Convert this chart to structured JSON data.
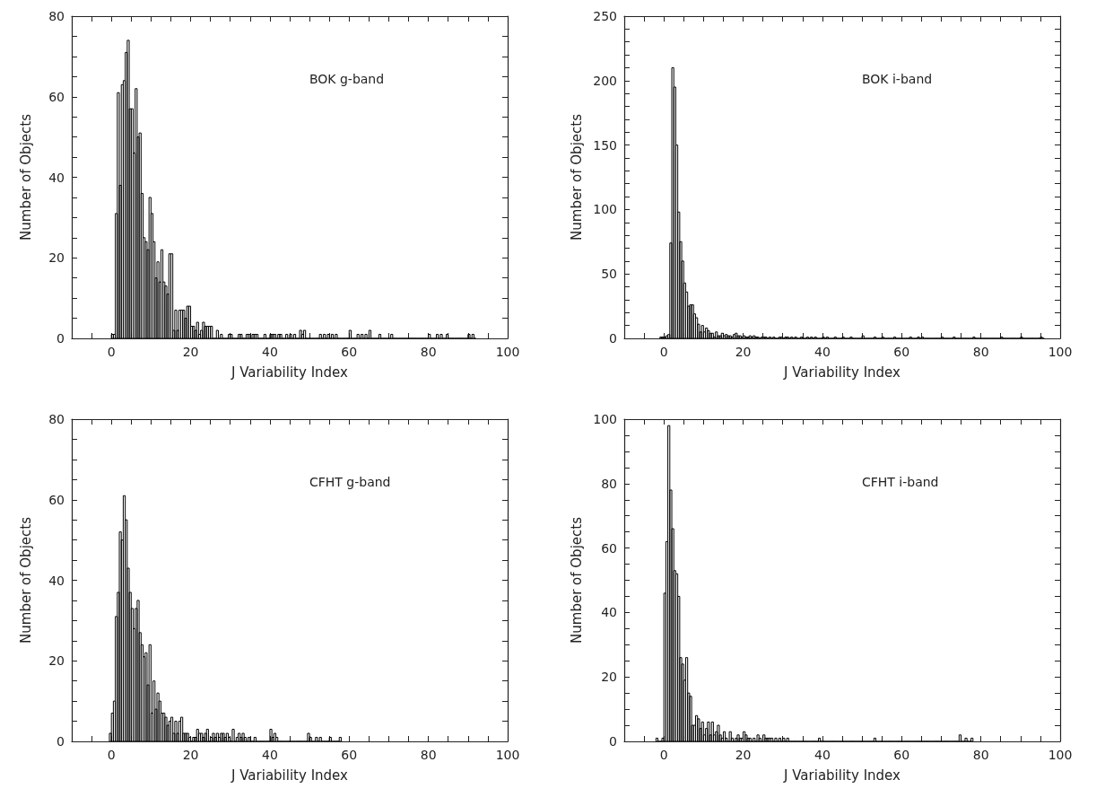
{
  "chart_data": [
    {
      "type": "histogram",
      "xlabel": "J Variability Index",
      "ylabel": "Number of Objects",
      "annotations": [
        "BOK g-band"
      ],
      "color": "#000000",
      "xlim": [
        -10,
        100
      ],
      "xticks": [
        {
          "value": -5,
          "label": null
        },
        0,
        {
          "value": 5,
          "label": null
        },
        {
          "value": 10,
          "label": null
        },
        {
          "value": 15,
          "label": null
        },
        20,
        {
          "value": 25,
          "label": null
        },
        {
          "value": 30,
          "label": null
        },
        {
          "value": 35,
          "label": null
        },
        40,
        {
          "value": 45,
          "label": null
        },
        {
          "value": 50,
          "label": null
        },
        {
          "value": 55,
          "label": null
        },
        60,
        {
          "value": 65,
          "label": null
        },
        {
          "value": 70,
          "label": null
        },
        {
          "value": 75,
          "label": null
        },
        80,
        {
          "value": 85,
          "label": null
        },
        {
          "value": 90,
          "label": null
        },
        {
          "value": 95,
          "label": null
        },
        100
      ],
      "ylim": [
        0,
        80
      ],
      "yticks": [
        0,
        {
          "value": 5,
          "label": null
        },
        {
          "value": 10,
          "label": null
        },
        {
          "value": 15,
          "label": null
        },
        20,
        {
          "value": 25,
          "label": null
        },
        {
          "value": 30,
          "label": null
        },
        {
          "value": 35,
          "label": null
        },
        40,
        {
          "value": 45,
          "label": null
        },
        {
          "value": 50,
          "label": null
        },
        {
          "value": 55,
          "label": null
        },
        60,
        {
          "value": 65,
          "label": null
        },
        {
          "value": 70,
          "label": null
        },
        {
          "value": 75,
          "label": null
        },
        80
      ],
      "bins": [
        0,
        0.5,
        1,
        1.5,
        2,
        2.5,
        3,
        3.5,
        4,
        4.5,
        5,
        5.5,
        6,
        6.5,
        7,
        7.5,
        8,
        8.5,
        9,
        9.5,
        10,
        10.5,
        11,
        11.5,
        12,
        12.5,
        13,
        13.5,
        14,
        14.5,
        15,
        15.5,
        16,
        16.5,
        17,
        17.5,
        18,
        18.5,
        19,
        19.5,
        20,
        20.5,
        21,
        21.5,
        22,
        22.5,
        23,
        23.5,
        24,
        24.5,
        25,
        25.5,
        26,
        26.5,
        27,
        27.5,
        28,
        28.5,
        29,
        29.5,
        30,
        30.5,
        31,
        31.5,
        32,
        32.5,
        33,
        33.5,
        34,
        34.5,
        35,
        35.5,
        36,
        36.5,
        37,
        37.5,
        38,
        38.5,
        39,
        39.5,
        40,
        40.5,
        41,
        41.5,
        42,
        42.5,
        43,
        43.5,
        44,
        44.5,
        45,
        45.5,
        46,
        46.5,
        47,
        47.5,
        48,
        48.5,
        49,
        49.5,
        50,
        50.5,
        51,
        51.5,
        52,
        52.5,
        53,
        53.5,
        54,
        54.5,
        55,
        55.5,
        56,
        56.5,
        57,
        57.5,
        58,
        58.5,
        59,
        59.5,
        60,
        60.5,
        61,
        61.5,
        62,
        62.5,
        63,
        63.5,
        64,
        64.5,
        65,
        65.5,
        66,
        66.5,
        67,
        67.5,
        68,
        68.5,
        69,
        69.5,
        70,
        70.5,
        71,
        71.5,
        72,
        72.5,
        73,
        73.5,
        74,
        74.5,
        75,
        75.5,
        76,
        76.5,
        77,
        77.5,
        78,
        78.5,
        79,
        79.5,
        80,
        80.5,
        81,
        81.5,
        82,
        82.5,
        83,
        83.5,
        84,
        84.5,
        85,
        85.5,
        86,
        86.5,
        87,
        87.5,
        88,
        88.5,
        89,
        89.5,
        90,
        90.5,
        91,
        91.5,
        92
      ],
      "values": [
        1,
        1,
        31,
        61,
        38,
        63,
        64,
        71,
        74,
        57,
        57,
        46,
        62,
        50,
        51,
        36,
        25,
        24,
        22,
        35,
        31,
        24,
        15,
        19,
        14,
        22,
        14,
        13,
        11,
        21,
        21,
        2,
        7,
        2,
        7,
        7,
        7,
        5,
        8,
        8,
        3,
        3,
        2,
        4,
        1,
        2,
        4,
        3,
        3,
        3,
        3,
        0,
        0,
        2,
        0,
        1,
        0,
        0,
        0,
        1,
        1,
        0,
        0,
        0,
        1,
        1,
        0,
        0,
        1,
        1,
        0,
        1,
        1,
        1,
        0,
        0,
        0,
        1,
        0,
        0,
        1,
        1,
        1,
        0,
        1,
        1,
        0,
        0,
        1,
        0,
        1,
        0,
        1,
        0,
        0,
        2,
        1,
        2,
        0,
        0,
        0,
        0,
        0,
        0,
        0,
        1,
        0,
        1,
        0,
        1,
        0,
        1,
        0,
        1,
        0,
        0,
        0,
        0,
        0,
        0,
        2,
        0,
        0,
        0,
        1,
        0,
        1,
        0,
        1,
        0,
        2,
        0,
        0,
        0,
        0,
        1,
        0,
        0,
        0,
        0,
        0,
        1,
        0,
        0,
        0,
        0,
        0,
        0,
        0,
        0,
        0,
        0,
        0,
        0,
        0,
        0,
        0,
        0,
        0,
        0,
        1,
        0,
        0,
        0,
        1,
        0,
        1,
        0,
        0,
        1,
        0,
        0,
        0,
        0,
        0,
        0,
        0,
        0,
        0,
        0,
        1,
        0,
        1,
        0
      ]
    },
    {
      "type": "histogram",
      "xlabel": "J Variability Index",
      "ylabel": "Number of Objects",
      "annotations": [
        "BOK i-band"
      ],
      "color": "#000000",
      "xlim": [
        -10,
        100
      ],
      "xticks": [
        {
          "value": -5,
          "label": null
        },
        0,
        {
          "value": 5,
          "label": null
        },
        {
          "value": 10,
          "label": null
        },
        {
          "value": 15,
          "label": null
        },
        20,
        {
          "value": 25,
          "label": null
        },
        {
          "value": 30,
          "label": null
        },
        {
          "value": 35,
          "label": null
        },
        40,
        {
          "value": 45,
          "label": null
        },
        {
          "value": 50,
          "label": null
        },
        {
          "value": 55,
          "label": null
        },
        60,
        {
          "value": 65,
          "label": null
        },
        {
          "value": 70,
          "label": null
        },
        {
          "value": 75,
          "label": null
        },
        80,
        {
          "value": 85,
          "label": null
        },
        {
          "value": 90,
          "label": null
        },
        {
          "value": 95,
          "label": null
        },
        100
      ],
      "ylim": [
        0,
        250
      ],
      "yticks": [
        0,
        {
          "value": 10,
          "label": null
        },
        {
          "value": 20,
          "label": null
        },
        {
          "value": 30,
          "label": null
        },
        {
          "value": 40,
          "label": null
        },
        50,
        {
          "value": 60,
          "label": null
        },
        {
          "value": 70,
          "label": null
        },
        {
          "value": 80,
          "label": null
        },
        {
          "value": 90,
          "label": null
        },
        100,
        {
          "value": 110,
          "label": null
        },
        {
          "value": 120,
          "label": null
        },
        {
          "value": 130,
          "label": null
        },
        {
          "value": 140,
          "label": null
        },
        150,
        {
          "value": 160,
          "label": null
        },
        {
          "value": 170,
          "label": null
        },
        {
          "value": 180,
          "label": null
        },
        {
          "value": 190,
          "label": null
        },
        200,
        {
          "value": 210,
          "label": null
        },
        {
          "value": 220,
          "label": null
        },
        {
          "value": 230,
          "label": null
        },
        {
          "value": 240,
          "label": null
        },
        250
      ],
      "bins": [
        -1,
        -0.5,
        0,
        0.5,
        1,
        1.5,
        2,
        2.5,
        3,
        3.5,
        4,
        4.5,
        5,
        5.5,
        6,
        6.5,
        7,
        7.5,
        8,
        8.5,
        9,
        9.5,
        10,
        10.5,
        11,
        11.5,
        12,
        12.5,
        13,
        13.5,
        14,
        14.5,
        15,
        15.5,
        16,
        16.5,
        17,
        17.5,
        18,
        18.5,
        19,
        19.5,
        20,
        20.5,
        21,
        21.5,
        22,
        22.5,
        23,
        23.5,
        24,
        24.5,
        25,
        25.5,
        26,
        26.5,
        27,
        27.5,
        28,
        28.5,
        29,
        29.5,
        30,
        30.5,
        31,
        31.5,
        32,
        32.5,
        33,
        33.5,
        34,
        34.5,
        35,
        35.5,
        36,
        36.5,
        37,
        37.5,
        38,
        38.5,
        39,
        39.5,
        40,
        40.5,
        41,
        41.5,
        42,
        42.5,
        43,
        43.5,
        44,
        44.5,
        45,
        45.5,
        46,
        46.5,
        47,
        47.5,
        48,
        48.5,
        49,
        49.5,
        50,
        50.5,
        51,
        51.5,
        52,
        52.5,
        53,
        53.5,
        54,
        54.5,
        55,
        55.5,
        56,
        56.5,
        57,
        57.5,
        58,
        58.5,
        59,
        59.5,
        60,
        60.5,
        61,
        61.5,
        62,
        62.5,
        63,
        63.5,
        64,
        64.5,
        65,
        65.5,
        66,
        66.5,
        67,
        67.5,
        68,
        68.5,
        69,
        69.5,
        70,
        70.5,
        71,
        71.5,
        72,
        72.5,
        73,
        73.5,
        74,
        74.5,
        75,
        75.5,
        76,
        76.5,
        77,
        77.5,
        78,
        78.5,
        79,
        79.5,
        80,
        80.5,
        81,
        81.5,
        82,
        82.5,
        83,
        83.5,
        84,
        84.5,
        85,
        85.5,
        86,
        86.5,
        87,
        87.5,
        88,
        88.5,
        89,
        89.5,
        90,
        90.5,
        91,
        91.5,
        92,
        92.5,
        93,
        93.5,
        94,
        94.5,
        95,
        95.5,
        96
      ],
      "values": [
        1,
        1,
        1,
        2,
        3,
        74,
        210,
        195,
        150,
        98,
        75,
        60,
        43,
        36,
        25,
        26,
        26,
        19,
        16,
        11,
        5,
        10,
        5,
        8,
        6,
        4,
        4,
        1,
        5,
        2,
        2,
        4,
        2,
        3,
        2,
        2,
        1,
        3,
        4,
        2,
        2,
        1,
        2,
        1,
        1,
        2,
        1,
        2,
        1,
        1,
        0,
        1,
        1,
        1,
        0,
        1,
        0,
        1,
        0,
        0,
        1,
        1,
        0,
        1,
        1,
        0,
        1,
        0,
        1,
        0,
        0,
        1,
        0,
        0,
        1,
        0,
        1,
        0,
        1,
        0,
        0,
        0,
        1,
        0,
        1,
        0,
        0,
        0,
        1,
        0,
        0,
        0,
        1,
        0,
        0,
        0,
        1,
        0,
        0,
        0,
        0,
        0,
        2,
        0,
        0,
        0,
        0,
        0,
        1,
        0,
        0,
        0,
        1,
        0,
        0,
        0,
        0,
        0,
        1,
        0,
        0,
        0,
        0,
        0,
        0,
        0,
        1,
        0,
        0,
        0,
        1,
        0,
        1,
        0,
        0,
        0,
        0,
        0,
        0,
        0,
        0,
        0,
        1,
        0,
        0,
        0,
        0,
        0,
        1,
        0,
        0,
        0,
        0,
        0,
        0,
        0,
        0,
        0,
        1,
        0,
        0,
        0,
        0,
        0,
        0,
        0,
        0,
        0,
        0,
        0,
        0,
        0,
        1,
        0,
        0,
        0,
        0,
        0,
        0,
        0,
        0,
        0,
        1,
        0,
        0,
        0,
        0,
        0,
        0,
        0,
        0,
        0,
        1,
        0
      ]
    },
    {
      "type": "histogram",
      "xlabel": "J Variability Index",
      "ylabel": "Number of Objects",
      "annotations": [
        "CFHT g-band"
      ],
      "color": "#000000",
      "xlim": [
        -10,
        100
      ],
      "xticks": [
        {
          "value": -5,
          "label": null
        },
        0,
        {
          "value": 5,
          "label": null
        },
        {
          "value": 10,
          "label": null
        },
        {
          "value": 15,
          "label": null
        },
        20,
        {
          "value": 25,
          "label": null
        },
        {
          "value": 30,
          "label": null
        },
        {
          "value": 35,
          "label": null
        },
        40,
        {
          "value": 45,
          "label": null
        },
        {
          "value": 50,
          "label": null
        },
        {
          "value": 55,
          "label": null
        },
        60,
        {
          "value": 65,
          "label": null
        },
        {
          "value": 70,
          "label": null
        },
        {
          "value": 75,
          "label": null
        },
        80,
        {
          "value": 85,
          "label": null
        },
        {
          "value": 90,
          "label": null
        },
        {
          "value": 95,
          "label": null
        },
        100
      ],
      "ylim": [
        0,
        80
      ],
      "yticks": [
        0,
        {
          "value": 5,
          "label": null
        },
        {
          "value": 10,
          "label": null
        },
        {
          "value": 15,
          "label": null
        },
        20,
        {
          "value": 25,
          "label": null
        },
        {
          "value": 30,
          "label": null
        },
        {
          "value": 35,
          "label": null
        },
        40,
        {
          "value": 45,
          "label": null
        },
        {
          "value": 50,
          "label": null
        },
        {
          "value": 55,
          "label": null
        },
        60,
        {
          "value": 65,
          "label": null
        },
        {
          "value": 70,
          "label": null
        },
        {
          "value": 75,
          "label": null
        },
        80
      ],
      "bins": [
        -0.5,
        0,
        0.5,
        1,
        1.5,
        2,
        2.5,
        3,
        3.5,
        4,
        4.5,
        5,
        5.5,
        6,
        6.5,
        7,
        7.5,
        8,
        8.5,
        9,
        9.5,
        10,
        10.5,
        11,
        11.5,
        12,
        12.5,
        13,
        13.5,
        14,
        14.5,
        15,
        15.5,
        16,
        16.5,
        17,
        17.5,
        18,
        18.5,
        19,
        19.5,
        20,
        20.5,
        21,
        21.5,
        22,
        22.5,
        23,
        23.5,
        24,
        24.5,
        25,
        25.5,
        26,
        26.5,
        27,
        27.5,
        28,
        28.5,
        29,
        29.5,
        30,
        30.5,
        31,
        31.5,
        32,
        32.5,
        33,
        33.5,
        34,
        34.5,
        35,
        35.5,
        36,
        36.5,
        37,
        37.5,
        38,
        38.5,
        39,
        39.5,
        40,
        40.5,
        41,
        41.5,
        42,
        42.5,
        43,
        43.5,
        44,
        44.5,
        45,
        45.5,
        46,
        46.5,
        47,
        47.5,
        48,
        48.5,
        49,
        49.5,
        50,
        50.5,
        51,
        51.5,
        52,
        52.5,
        53,
        53.5,
        54,
        54.5,
        55,
        55.5,
        56,
        56.5,
        57,
        57.5,
        58
      ],
      "values": [
        2,
        7,
        10,
        31,
        37,
        52,
        50,
        61,
        55,
        43,
        37,
        33,
        28,
        33,
        35,
        27,
        24,
        21,
        22,
        14,
        24,
        7,
        15,
        8,
        12,
        10,
        7,
        7,
        6,
        4,
        5,
        6,
        2,
        5,
        2,
        5,
        6,
        2,
        2,
        2,
        1,
        0,
        1,
        1,
        3,
        2,
        2,
        1,
        2,
        3,
        0,
        1,
        2,
        1,
        2,
        1,
        2,
        2,
        1,
        2,
        1,
        0,
        3,
        0,
        1,
        2,
        1,
        2,
        1,
        0,
        1,
        0,
        0,
        1,
        0,
        0,
        0,
        0,
        0,
        0,
        0,
        3,
        1,
        2,
        1,
        0,
        0,
        0,
        0,
        0,
        0,
        0,
        0,
        0,
        0,
        0,
        0,
        0,
        0,
        0,
        2,
        1,
        0,
        0,
        1,
        0,
        1,
        0,
        0,
        0,
        0,
        1,
        0,
        0,
        0,
        0,
        1
      ]
    },
    {
      "type": "histogram",
      "xlabel": "J Variability Index",
      "ylabel": "Number of Objects",
      "annotations": [
        "CFHT i-band"
      ],
      "color": "#000000",
      "xlim": [
        -10,
        100
      ],
      "xticks": [
        {
          "value": -5,
          "label": null
        },
        0,
        {
          "value": 5,
          "label": null
        },
        {
          "value": 10,
          "label": null
        },
        {
          "value": 15,
          "label": null
        },
        20,
        {
          "value": 25,
          "label": null
        },
        {
          "value": 30,
          "label": null
        },
        {
          "value": 35,
          "label": null
        },
        40,
        {
          "value": 45,
          "label": null
        },
        {
          "value": 50,
          "label": null
        },
        {
          "value": 55,
          "label": null
        },
        60,
        {
          "value": 65,
          "label": null
        },
        {
          "value": 70,
          "label": null
        },
        {
          "value": 75,
          "label": null
        },
        80,
        {
          "value": 85,
          "label": null
        },
        {
          "value": 90,
          "label": null
        },
        {
          "value": 95,
          "label": null
        },
        100
      ],
      "ylim": [
        0,
        100
      ],
      "yticks": [
        0,
        {
          "value": 5,
          "label": null
        },
        {
          "value": 10,
          "label": null
        },
        {
          "value": 15,
          "label": null
        },
        20,
        {
          "value": 25,
          "label": null
        },
        {
          "value": 30,
          "label": null
        },
        {
          "value": 35,
          "label": null
        },
        40,
        {
          "value": 45,
          "label": null
        },
        {
          "value": 50,
          "label": null
        },
        {
          "value": 55,
          "label": null
        },
        60,
        {
          "value": 65,
          "label": null
        },
        {
          "value": 70,
          "label": null
        },
        {
          "value": 75,
          "label": null
        },
        80,
        {
          "value": 85,
          "label": null
        },
        {
          "value": 90,
          "label": null
        },
        {
          "value": 95,
          "label": null
        },
        100
      ],
      "bins": [
        -2,
        -1.5,
        -1,
        -0.5,
        0,
        0.5,
        1,
        1.5,
        2,
        2.5,
        3,
        3.5,
        4,
        4.5,
        5,
        5.5,
        6,
        6.5,
        7,
        7.5,
        8,
        8.5,
        9,
        9.5,
        10,
        10.5,
        11,
        11.5,
        12,
        12.5,
        13,
        13.5,
        14,
        14.5,
        15,
        15.5,
        16,
        16.5,
        17,
        17.5,
        18,
        18.5,
        19,
        19.5,
        20,
        20.5,
        21,
        21.5,
        22,
        22.5,
        23,
        23.5,
        24,
        24.5,
        25,
        25.5,
        26,
        26.5,
        27,
        27.5,
        28,
        28.5,
        29,
        29.5,
        30,
        30.5,
        31,
        31.5,
        32,
        32.5,
        33,
        33.5,
        34,
        34.5,
        35,
        35.5,
        36,
        36.5,
        37,
        37.5,
        38,
        38.5,
        39,
        39.5,
        40,
        40.5,
        41,
        41.5,
        42,
        42.5,
        43,
        43.5,
        44,
        44.5,
        45,
        45.5,
        46,
        46.5,
        47,
        47.5,
        48,
        48.5,
        49,
        49.5,
        50,
        50.5,
        51,
        51.5,
        52,
        52.5,
        53,
        53.5,
        54,
        54.5,
        55,
        55.5,
        56,
        56.5,
        57,
        57.5,
        58,
        58.5,
        59,
        59.5,
        60,
        60.5,
        61,
        61.5,
        62,
        62.5,
        63,
        63.5,
        64,
        64.5,
        65,
        65.5,
        66,
        66.5,
        67,
        67.5,
        68,
        68.5,
        69,
        69.5,
        70,
        70.5,
        71,
        71.5,
        72,
        72.5,
        73,
        73.5,
        74,
        74.5,
        75,
        75.5,
        76,
        76.5,
        77,
        77.5,
        78
      ],
      "values": [
        1,
        0,
        0,
        1,
        46,
        62,
        98,
        78,
        66,
        53,
        52,
        45,
        26,
        24,
        19,
        26,
        15,
        14,
        5,
        5,
        8,
        7,
        4,
        6,
        2,
        4,
        6,
        2,
        6,
        2,
        3,
        5,
        2,
        1,
        3,
        1,
        0,
        3,
        1,
        0,
        1,
        2,
        1,
        1,
        3,
        2,
        1,
        1,
        0,
        1,
        0,
        2,
        1,
        0,
        2,
        1,
        1,
        1,
        1,
        0,
        1,
        0,
        1,
        0,
        1,
        0,
        1,
        0,
        0,
        0,
        0,
        0,
        0,
        0,
        0,
        0,
        0,
        0,
        0,
        0,
        0,
        0,
        1,
        0,
        0,
        0,
        0,
        0,
        0,
        0,
        0,
        0,
        0,
        0,
        0,
        0,
        0,
        0,
        0,
        0,
        0,
        0,
        0,
        0,
        0,
        0,
        0,
        0,
        0,
        0,
        1,
        0,
        0,
        0,
        0,
        0,
        0,
        0,
        0,
        0,
        0,
        0,
        0,
        0,
        0,
        0,
        0,
        0,
        0,
        0,
        0,
        0,
        0,
        0,
        0,
        0,
        0,
        0,
        0,
        0,
        0,
        0,
        0,
        0,
        0,
        0,
        0,
        0,
        0,
        0,
        0,
        0,
        0,
        2,
        0,
        0,
        1,
        0,
        0,
        1
      ]
    }
  ]
}
